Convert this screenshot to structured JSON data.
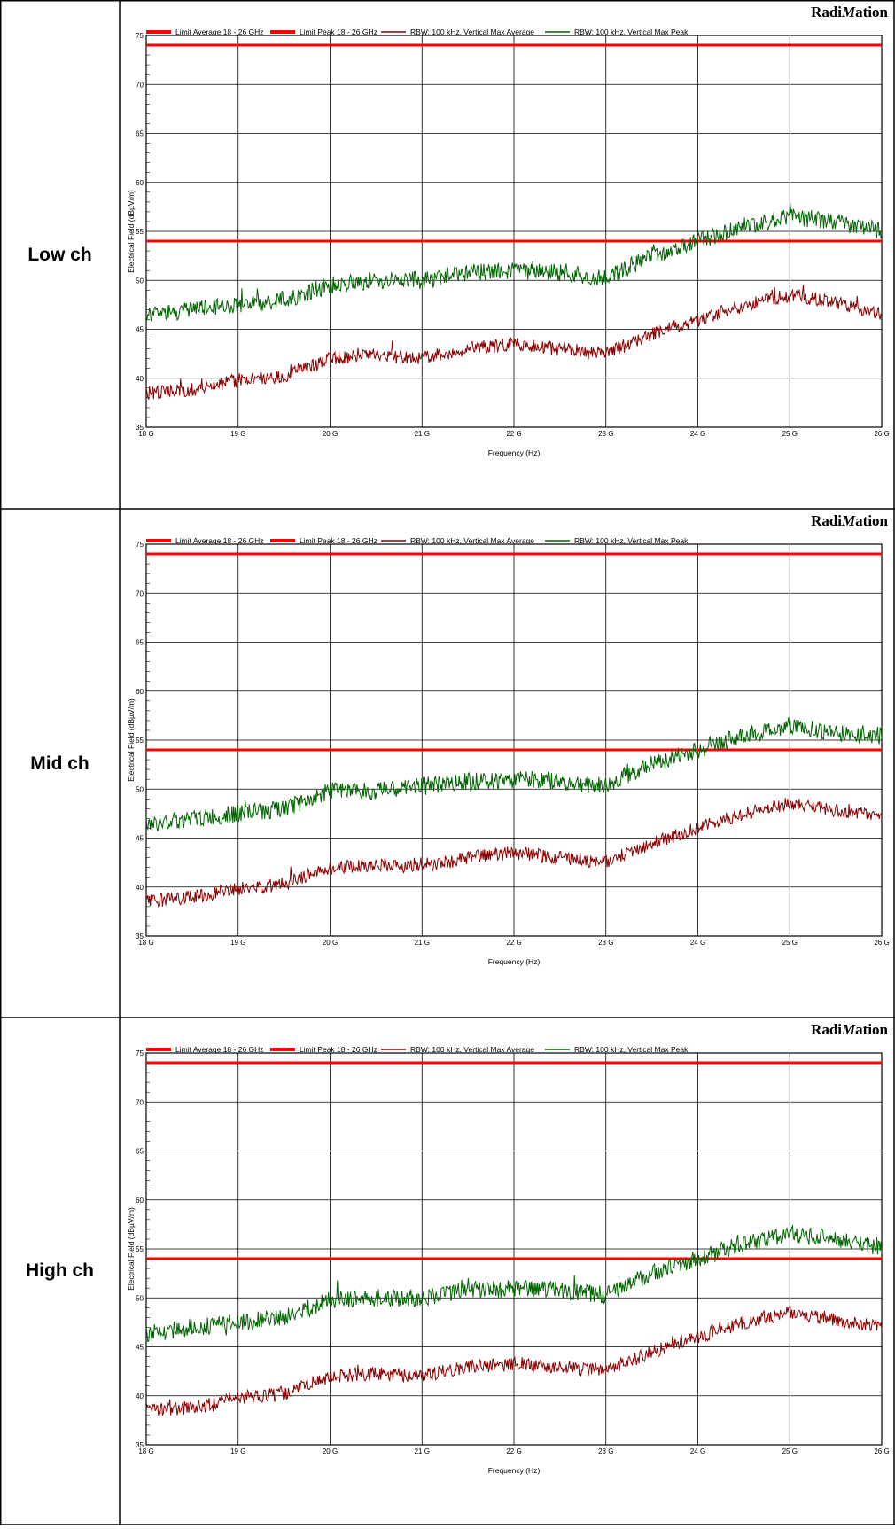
{
  "rows": [
    {
      "label": "Low ch",
      "chart_index": 0
    },
    {
      "label": "Mid ch",
      "chart_index": 1
    },
    {
      "label": "High ch",
      "chart_index": 2
    }
  ],
  "brand": {
    "prefix": "Radi",
    "italic": "M",
    "suffix": "ation"
  },
  "colors": {
    "limit": "#ff0000",
    "avg": "#8b0000",
    "peak": "#006400",
    "grid": "#000000"
  },
  "chart_data": [
    {
      "type": "line",
      "title": "",
      "xlabel": "Frequency (Hz)",
      "ylabel": "Electrical Field (dBµV/m)",
      "xlim": [
        18,
        26
      ],
      "ylim": [
        35,
        75
      ],
      "xticks": [
        "18 G",
        "19 G",
        "20 G",
        "21 G",
        "22 G",
        "23 G",
        "24 G",
        "25 G",
        "26 G"
      ],
      "yticks": [
        "35",
        "40",
        "45",
        "50",
        "55",
        "60",
        "65",
        "70",
        "75"
      ],
      "grid": true,
      "legend_position": "top",
      "series": [
        {
          "name": "Limit Average 18 - 26 GHz",
          "style": "limit",
          "color": "#ff0000",
          "x": [
            18,
            26
          ],
          "y": [
            54,
            54
          ]
        },
        {
          "name": "Limit Peak 18 - 26 GHz",
          "style": "limit",
          "color": "#ff0000",
          "x": [
            18,
            26
          ],
          "y": [
            74,
            74
          ]
        },
        {
          "name": "RBW: 100 kHz, Vertical Max Average",
          "style": "trace",
          "color": "#8b0000",
          "x": [
            18,
            18.5,
            19,
            19.5,
            20,
            20.5,
            21,
            21.5,
            22,
            22.5,
            23,
            23.5,
            24,
            24.5,
            25,
            25.5,
            26
          ],
          "y": [
            38.5,
            38.8,
            39.8,
            40.2,
            42,
            42.5,
            42,
            43,
            43.5,
            43,
            42.5,
            44.5,
            46,
            47.5,
            48.5,
            47.8,
            46.5
          ],
          "noise": 0.7
        },
        {
          "name": "RBW: 100 kHz, Vertical Max Peak",
          "style": "trace",
          "color": "#006400",
          "x": [
            18,
            18.5,
            19,
            19.5,
            20,
            20.5,
            21,
            21.5,
            22,
            22.5,
            23,
            23.5,
            24,
            24.5,
            25,
            25.5,
            26
          ],
          "y": [
            46.5,
            47,
            47.5,
            48,
            49.5,
            50,
            50,
            50.8,
            51,
            50.8,
            50.2,
            52.5,
            54,
            55.5,
            56.5,
            56,
            55
          ],
          "noise": 0.9
        }
      ]
    },
    {
      "type": "line",
      "title": "",
      "xlabel": "Frequency (Hz)",
      "ylabel": "Electrical Field (dBµV/m)",
      "xlim": [
        18,
        26
      ],
      "ylim": [
        35,
        75
      ],
      "xticks": [
        "18 G",
        "19 G",
        "20 G",
        "21 G",
        "22 G",
        "23 G",
        "24 G",
        "25 G",
        "26 G"
      ],
      "yticks": [
        "35",
        "40",
        "45",
        "50",
        "55",
        "60",
        "65",
        "70",
        "75"
      ],
      "grid": true,
      "legend_position": "top",
      "series": [
        {
          "name": "Limit Average 18 - 26 GHz",
          "style": "limit",
          "color": "#ff0000",
          "x": [
            18,
            26
          ],
          "y": [
            54,
            54
          ]
        },
        {
          "name": "Limit Peak 18 - 26 GHz",
          "style": "limit",
          "color": "#ff0000",
          "x": [
            18,
            26
          ],
          "y": [
            74,
            74
          ]
        },
        {
          "name": "RBW: 100 kHz, Vertical Max Average",
          "style": "trace",
          "color": "#8b0000",
          "x": [
            18,
            18.5,
            19,
            19.5,
            20,
            20.5,
            21,
            21.5,
            22,
            22.5,
            23,
            23.5,
            24,
            24.5,
            25,
            25.5,
            26
          ],
          "y": [
            38.5,
            39,
            39.8,
            40.3,
            42,
            42.3,
            42,
            43,
            43.5,
            43,
            42.5,
            44.5,
            46,
            47.5,
            48.5,
            47.8,
            47.5
          ],
          "noise": 0.7
        },
        {
          "name": "RBW: 100 kHz, Vertical Max Peak",
          "style": "trace",
          "color": "#006400",
          "x": [
            18,
            18.5,
            19,
            19.5,
            20,
            20.5,
            21,
            21.5,
            22,
            22.5,
            23,
            23.5,
            24,
            24.5,
            25,
            25.5,
            26
          ],
          "y": [
            46.3,
            47,
            47.5,
            48,
            49.8,
            49.8,
            50.3,
            50.8,
            51,
            50.8,
            50.3,
            52.5,
            54,
            55.5,
            56.5,
            55.8,
            55.5
          ],
          "noise": 0.9
        }
      ]
    },
    {
      "type": "line",
      "title": "",
      "xlabel": "Frequency (Hz)",
      "ylabel": "Electrical Field (dBµV/m)",
      "xlim": [
        18,
        26
      ],
      "ylim": [
        35,
        75
      ],
      "xticks": [
        "18 G",
        "19 G",
        "20 G",
        "21 G",
        "22 G",
        "23 G",
        "24 G",
        "25 G",
        "26 G"
      ],
      "yticks": [
        "35",
        "40",
        "45",
        "50",
        "55",
        "60",
        "65",
        "70",
        "75"
      ],
      "grid": true,
      "legend_position": "top",
      "series": [
        {
          "name": "Limit Average 18 - 26 GHz",
          "style": "limit",
          "color": "#ff0000",
          "x": [
            18,
            26
          ],
          "y": [
            54,
            54
          ]
        },
        {
          "name": "Limit Peak 18 - 26 GHz",
          "style": "limit",
          "color": "#ff0000",
          "x": [
            18,
            26
          ],
          "y": [
            74,
            74
          ]
        },
        {
          "name": "RBW: 100 kHz, Vertical Max Average",
          "style": "trace",
          "color": "#8b0000",
          "x": [
            18,
            18.5,
            19,
            19.5,
            20,
            20.5,
            21,
            21.5,
            22,
            22.5,
            23,
            23.5,
            24,
            24.5,
            25,
            25.5,
            26
          ],
          "y": [
            38.5,
            38.8,
            39.8,
            40.2,
            42,
            42.3,
            42,
            43,
            43.2,
            43,
            42.5,
            44.5,
            46,
            47.5,
            48.5,
            47.8,
            47
          ],
          "noise": 0.7
        },
        {
          "name": "RBW: 100 kHz, Vertical Max Peak",
          "style": "trace",
          "color": "#006400",
          "x": [
            18,
            18.5,
            19,
            19.5,
            20,
            20.5,
            21,
            21.5,
            22,
            22.5,
            23,
            23.5,
            24,
            24.5,
            25,
            25.5,
            26
          ],
          "y": [
            46.3,
            47,
            47.5,
            48,
            49.8,
            50,
            50,
            50.8,
            51,
            50.8,
            50.3,
            52.5,
            54,
            55.5,
            56.5,
            56,
            55
          ],
          "noise": 0.9
        }
      ]
    }
  ]
}
